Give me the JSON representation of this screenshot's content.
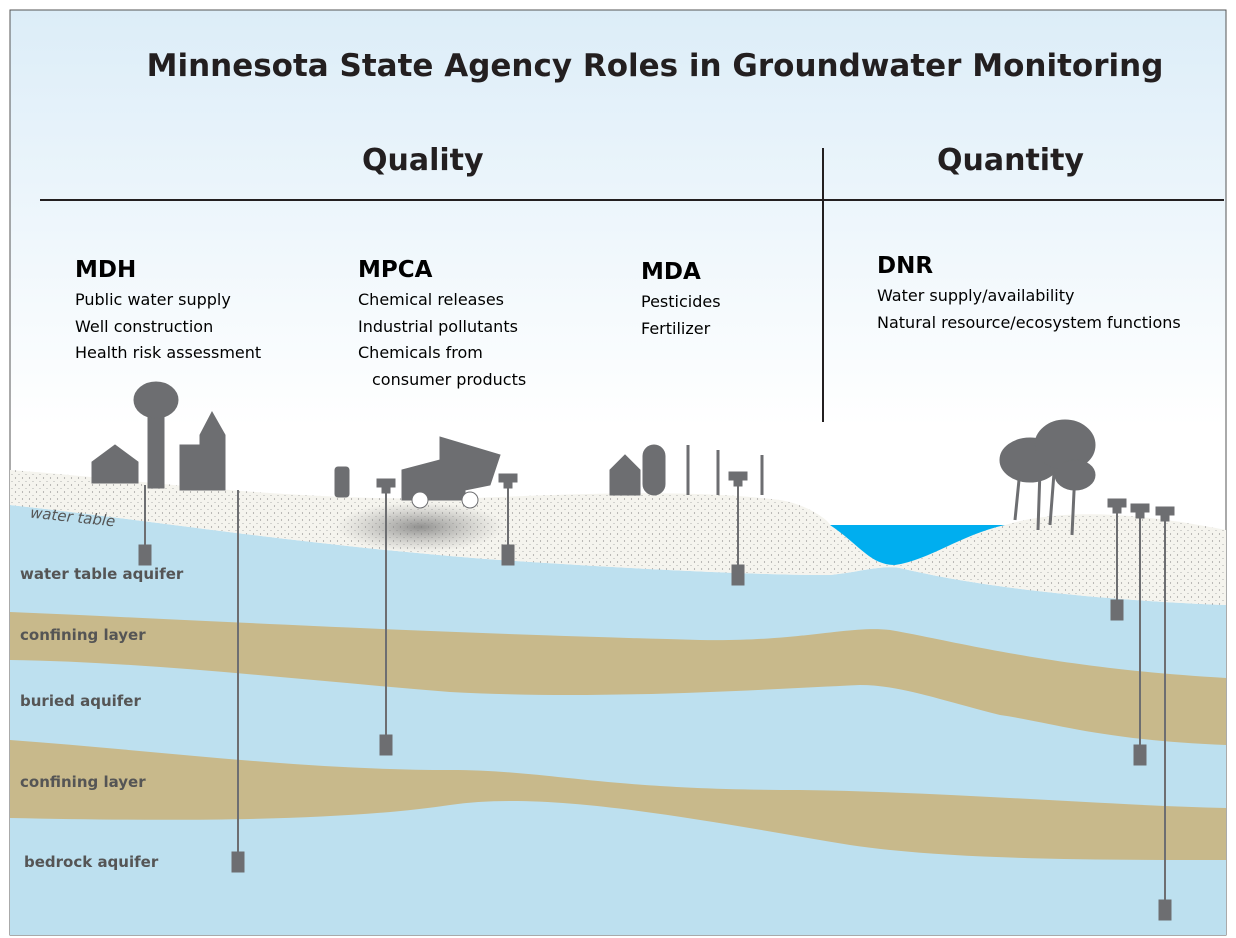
{
  "title": "Minnesota State Agency Roles in Groundwater Monitoring",
  "sections": [
    {
      "heading": "Quality"
    },
    {
      "heading": "Quantity"
    }
  ],
  "agencies": [
    {
      "name": "MDH",
      "roles": [
        "Public water supply",
        "Well construction",
        "Health risk assessment"
      ]
    },
    {
      "name": "MPCA",
      "roles": [
        "Chemical releases",
        "Industrial pollutants",
        "Chemicals from consumer products"
      ]
    },
    {
      "name": "MDA",
      "roles": [
        "Pesticides",
        "Fertilizer"
      ]
    },
    {
      "name": "DNR",
      "roles": [
        "Water supply/availability",
        "Natural resource/ecosystem functions"
      ]
    }
  ],
  "layers": [
    "water table",
    "water table aquifer",
    "confining layer",
    "buried aquifer",
    "confining layer",
    "bedrock aquifer"
  ]
}
